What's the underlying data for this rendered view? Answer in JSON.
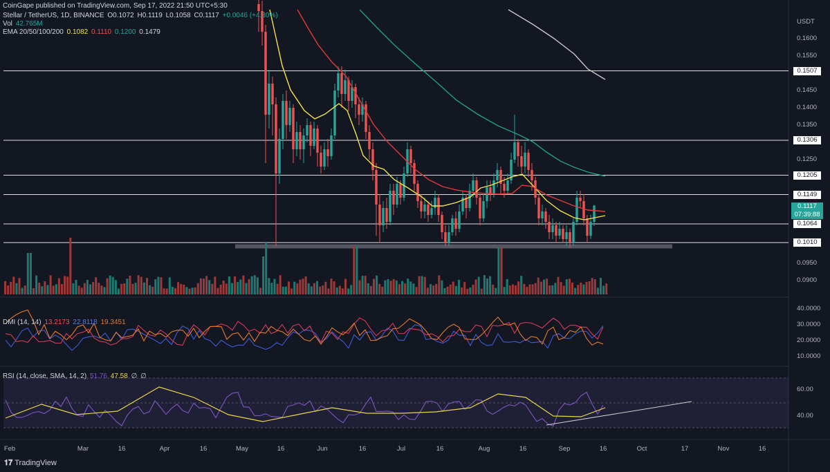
{
  "publisher": "CoinGape published on TradingView.com, Sep 17, 2022 21:50 UTC+5:30",
  "symbol": "Stellar / TetherUS, 1D, BINANCE",
  "ohlc": {
    "o": "O0.1072",
    "h": "H0.1119",
    "l": "L0.1058",
    "c": "C0.1117",
    "chg": "+0.0046 (+4.30%)"
  },
  "vol": {
    "label": "Vol",
    "value": "42.765M"
  },
  "ema": {
    "label": "EMA 20/50/100/200",
    "v20": "0.1082",
    "v50": "0.1110",
    "v100": "0.1200",
    "v200": "0.1479"
  },
  "dmi": {
    "label": "DMI (14, 14)",
    "v1": "13.2173",
    "v2": "22.8118",
    "v3": "19.3451"
  },
  "rsi": {
    "label": "RSI (14, close, SMA, 14, 2)",
    "v1": "51.76",
    "v2": "47.58",
    "v3": "∅",
    "v4": "∅"
  },
  "currency": "USDT",
  "countdown": "07:39:88",
  "tradingview": "TradingView",
  "colors": {
    "bg": "#131722",
    "up": "#26a69a",
    "down": "#ef5350",
    "ema20": "#f5e44a",
    "ema50": "#e23a3a",
    "ema100": "#1fa084",
    "ema200": "#c8c8c8",
    "dmi_plus": "#3f5bd8",
    "dmi_minus": "#d83a5a",
    "adx": "#e57a2a",
    "rsi": "#7e57c2",
    "rsi_ma": "#e8d84a"
  },
  "chart_data": {
    "type": "candlestick",
    "x_tick_labels": [
      "Feb",
      "Mar",
      "16",
      "Apr",
      "16",
      "May",
      "16",
      "Jun",
      "16",
      "Jul",
      "16",
      "Aug",
      "16",
      "Sep",
      "16",
      "Oct",
      "17",
      "Nov",
      "16"
    ],
    "price_axis_labels": [
      "0.1600",
      "0.1550",
      "0.1450",
      "0.1400",
      "0.1350",
      "0.1250",
      "0.1150",
      "0.0950",
      "0.0900"
    ],
    "hlines": [
      {
        "price": 0.1507,
        "label": "0.1507"
      },
      {
        "price": 0.1306,
        "label": "0.1306"
      },
      {
        "price": 0.1205,
        "label": "0.1205"
      },
      {
        "price": 0.1149,
        "label": "0.1149"
      },
      {
        "price": 0.1064,
        "label": "0.1064"
      },
      {
        "price": 0.101,
        "label": "0.1010"
      }
    ],
    "last_price": "0.1117",
    "dmi_axis": [
      "40.0000",
      "30.0000",
      "20.0000",
      "10.0000"
    ],
    "rsi_axis": [
      "60.00",
      "40.00"
    ],
    "candles": [
      [
        0.17,
        0.168,
        0.178,
        0.162
      ],
      [
        0.168,
        0.162,
        0.171,
        0.158
      ],
      [
        0.162,
        0.138,
        0.164,
        0.124
      ],
      [
        0.138,
        0.147,
        0.151,
        0.134
      ],
      [
        0.147,
        0.141,
        0.149,
        0.132
      ],
      [
        0.141,
        0.121,
        0.143,
        0.1
      ],
      [
        0.121,
        0.131,
        0.134,
        0.118
      ],
      [
        0.131,
        0.142,
        0.144,
        0.128
      ],
      [
        0.142,
        0.135,
        0.145,
        0.131
      ],
      [
        0.135,
        0.14,
        0.142,
        0.133
      ],
      [
        0.14,
        0.128,
        0.141,
        0.124
      ],
      [
        0.128,
        0.133,
        0.136,
        0.126
      ],
      [
        0.133,
        0.128,
        0.135,
        0.125
      ],
      [
        0.128,
        0.132,
        0.134,
        0.124
      ],
      [
        0.132,
        0.135,
        0.137,
        0.13
      ],
      [
        0.135,
        0.129,
        0.136,
        0.126
      ],
      [
        0.129,
        0.134,
        0.136,
        0.128
      ],
      [
        0.134,
        0.127,
        0.135,
        0.123
      ],
      [
        0.127,
        0.123,
        0.129,
        0.121
      ],
      [
        0.123,
        0.128,
        0.13,
        0.122
      ],
      [
        0.128,
        0.126,
        0.131,
        0.123
      ],
      [
        0.126,
        0.132,
        0.134,
        0.125
      ],
      [
        0.132,
        0.145,
        0.147,
        0.131
      ],
      [
        0.145,
        0.15,
        0.152,
        0.143
      ],
      [
        0.15,
        0.144,
        0.152,
        0.14
      ],
      [
        0.144,
        0.148,
        0.151,
        0.142
      ],
      [
        0.148,
        0.142,
        0.149,
        0.139
      ],
      [
        0.142,
        0.146,
        0.148,
        0.14
      ],
      [
        0.146,
        0.141,
        0.147,
        0.137
      ],
      [
        0.141,
        0.138,
        0.143,
        0.135
      ],
      [
        0.138,
        0.141,
        0.143,
        0.136
      ],
      [
        0.141,
        0.133,
        0.142,
        0.131
      ],
      [
        0.133,
        0.128,
        0.135,
        0.125
      ],
      [
        0.128,
        0.122,
        0.13,
        0.119
      ],
      [
        0.122,
        0.112,
        0.124,
        0.103
      ],
      [
        0.112,
        0.106,
        0.115,
        0.101
      ],
      [
        0.106,
        0.111,
        0.113,
        0.104
      ],
      [
        0.111,
        0.107,
        0.114,
        0.105
      ],
      [
        0.107,
        0.116,
        0.118,
        0.106
      ],
      [
        0.116,
        0.112,
        0.118,
        0.109
      ],
      [
        0.112,
        0.118,
        0.12,
        0.111
      ],
      [
        0.118,
        0.114,
        0.119,
        0.112
      ],
      [
        0.114,
        0.121,
        0.123,
        0.113
      ],
      [
        0.121,
        0.128,
        0.13,
        0.12
      ],
      [
        0.128,
        0.124,
        0.129,
        0.121
      ],
      [
        0.124,
        0.118,
        0.125,
        0.116
      ],
      [
        0.118,
        0.113,
        0.119,
        0.111
      ],
      [
        0.113,
        0.11,
        0.115,
        0.108
      ],
      [
        0.11,
        0.112,
        0.114,
        0.108
      ],
      [
        0.112,
        0.109,
        0.113,
        0.107
      ],
      [
        0.109,
        0.111,
        0.113,
        0.108
      ],
      [
        0.111,
        0.114,
        0.116,
        0.109
      ],
      [
        0.114,
        0.109,
        0.115,
        0.107
      ],
      [
        0.109,
        0.104,
        0.11,
        0.102
      ],
      [
        0.104,
        0.101,
        0.106,
        0.1
      ],
      [
        0.101,
        0.104,
        0.106,
        0.1
      ],
      [
        0.104,
        0.108,
        0.109,
        0.103
      ],
      [
        0.108,
        0.105,
        0.11,
        0.103
      ],
      [
        0.105,
        0.11,
        0.112,
        0.104
      ],
      [
        0.11,
        0.114,
        0.116,
        0.109
      ],
      [
        0.114,
        0.111,
        0.115,
        0.108
      ],
      [
        0.111,
        0.116,
        0.118,
        0.11
      ],
      [
        0.116,
        0.119,
        0.121,
        0.114
      ],
      [
        0.119,
        0.114,
        0.12,
        0.112
      ],
      [
        0.114,
        0.108,
        0.115,
        0.106
      ],
      [
        0.108,
        0.113,
        0.115,
        0.107
      ],
      [
        0.113,
        0.117,
        0.119,
        0.111
      ],
      [
        0.117,
        0.115,
        0.119,
        0.113
      ],
      [
        0.115,
        0.119,
        0.121,
        0.114
      ],
      [
        0.119,
        0.122,
        0.124,
        0.117
      ],
      [
        0.122,
        0.118,
        0.123,
        0.115
      ],
      [
        0.118,
        0.116,
        0.12,
        0.114
      ],
      [
        0.116,
        0.119,
        0.121,
        0.115
      ],
      [
        0.119,
        0.125,
        0.127,
        0.118
      ],
      [
        0.125,
        0.13,
        0.138,
        0.124
      ],
      [
        0.13,
        0.126,
        0.131,
        0.123
      ],
      [
        0.126,
        0.123,
        0.129,
        0.121
      ],
      [
        0.123,
        0.127,
        0.13,
        0.121
      ],
      [
        0.127,
        0.122,
        0.128,
        0.12
      ],
      [
        0.122,
        0.119,
        0.124,
        0.116
      ],
      [
        0.119,
        0.114,
        0.12,
        0.112
      ],
      [
        0.114,
        0.108,
        0.115,
        0.106
      ],
      [
        0.108,
        0.11,
        0.112,
        0.106
      ],
      [
        0.11,
        0.107,
        0.111,
        0.105
      ],
      [
        0.107,
        0.104,
        0.109,
        0.102
      ],
      [
        0.104,
        0.106,
        0.108,
        0.102
      ],
      [
        0.106,
        0.103,
        0.107,
        0.101
      ],
      [
        0.103,
        0.105,
        0.107,
        0.102
      ],
      [
        0.105,
        0.102,
        0.106,
        0.101
      ],
      [
        0.102,
        0.104,
        0.106,
        0.1
      ],
      [
        0.104,
        0.101,
        0.105,
        0.0995
      ],
      [
        0.101,
        0.107,
        0.108,
        0.1
      ],
      [
        0.107,
        0.114,
        0.116,
        0.106
      ],
      [
        0.114,
        0.113,
        0.116,
        0.111
      ],
      [
        0.113,
        0.108,
        0.115,
        0.106
      ],
      [
        0.108,
        0.103,
        0.109,
        0.101
      ],
      [
        0.103,
        0.107,
        0.109,
        0.102
      ],
      [
        0.107,
        0.1117,
        0.1119,
        0.1058
      ]
    ]
  }
}
